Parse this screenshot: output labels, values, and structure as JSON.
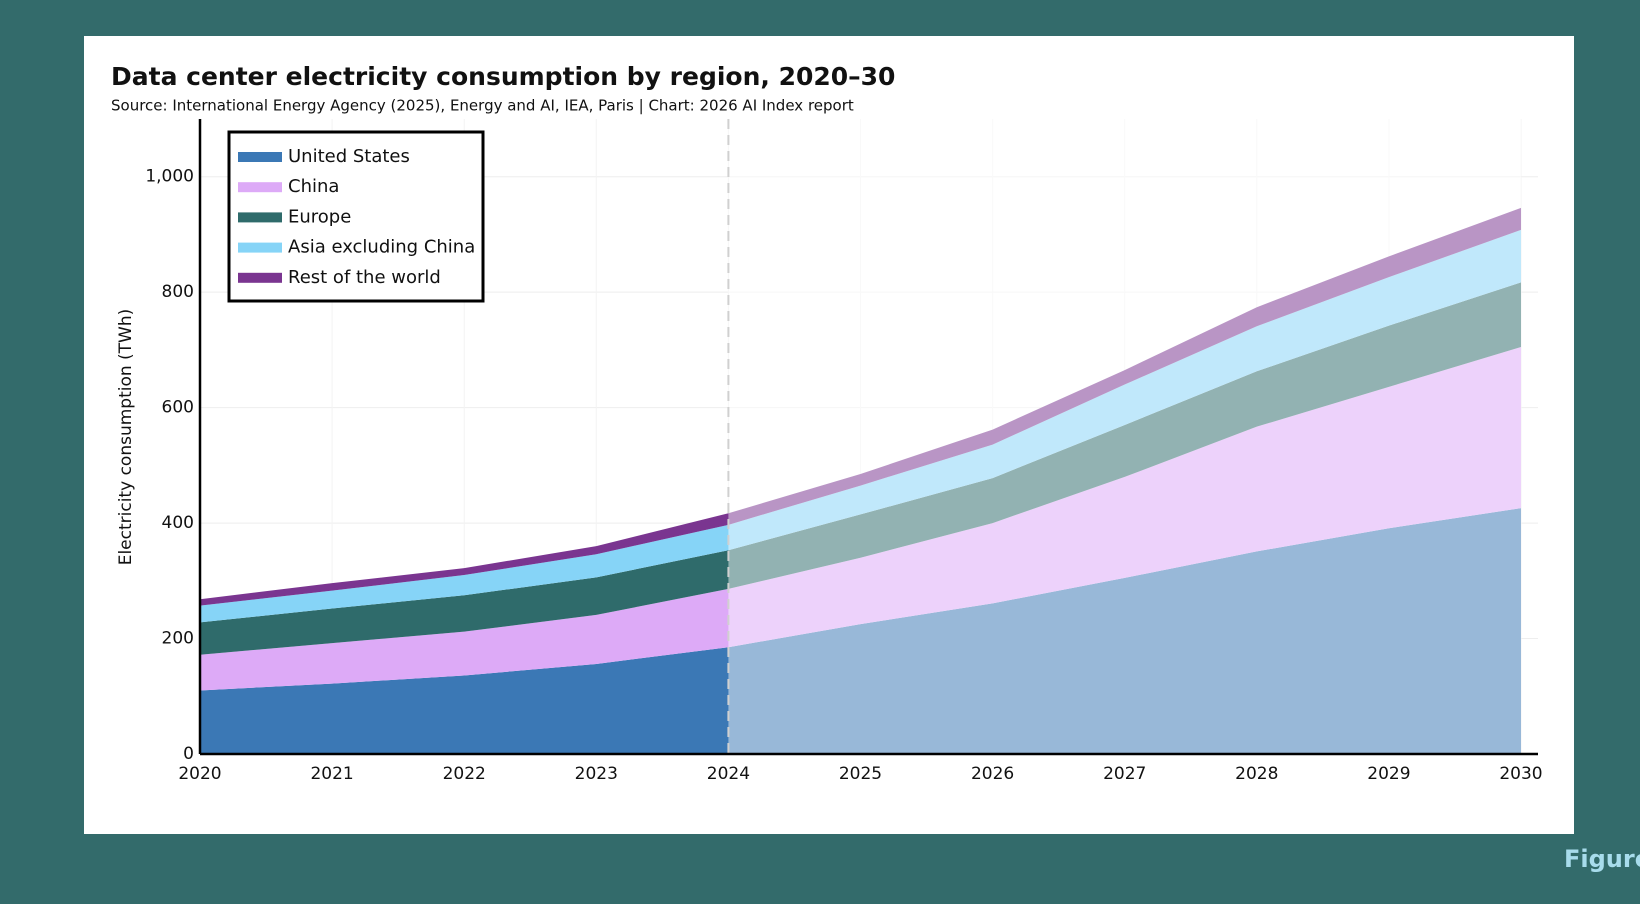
{
  "chart_data": {
    "type": "stacked-area",
    "title": "Data center electricity consumption by region, 2020–30",
    "subtitle": "Source: International Energy Agency (2025), Energy and AI, IEA, Paris | Chart: 2026 AI Index report",
    "y_label": "Electricity consumption (TWh)",
    "x": [
      2020,
      2021,
      2022,
      2023,
      2024,
      2025,
      2026,
      2027,
      2028,
      2029,
      2030
    ],
    "xlim": [
      2020,
      2030
    ],
    "xticks": [
      2020,
      2021,
      2022,
      2023,
      2024,
      2025,
      2026,
      2027,
      2028,
      2029,
      2030
    ],
    "ylim": [
      0,
      1100
    ],
    "yticks": [
      0,
      200,
      400,
      600,
      800,
      {
        "value": 1000,
        "label": "1,000"
      }
    ],
    "grid": true,
    "legend": "upper left",
    "projection_start": 2024,
    "series": [
      {
        "name": "United States",
        "color": "#3b78b5",
        "values": [
          110,
          122,
          136,
          156,
          185,
          225,
          261,
          305,
          351,
          391,
          426
        ]
      },
      {
        "name": "China",
        "color": "#ddaaf7",
        "values": [
          62,
          70,
          76,
          85,
          101,
          115,
          139,
          175,
          216,
          245,
          279
        ]
      },
      {
        "name": "Europe",
        "color": "#2f6b6b",
        "values": [
          56,
          60,
          63,
          65,
          67,
          75,
          78,
          90,
          96,
          106,
          112
        ]
      },
      {
        "name": "Asia excluding China",
        "color": "#86d4f7",
        "values": [
          29,
          31,
          35,
          40,
          44,
          50,
          58,
          70,
          78,
          84,
          91
        ]
      },
      {
        "name": "Rest of the world",
        "color": "#7a3590",
        "values": [
          11,
          13,
          12,
          14,
          20,
          20,
          26,
          25,
          33,
          36,
          38
        ]
      }
    ]
  },
  "footer": "Figure"
}
